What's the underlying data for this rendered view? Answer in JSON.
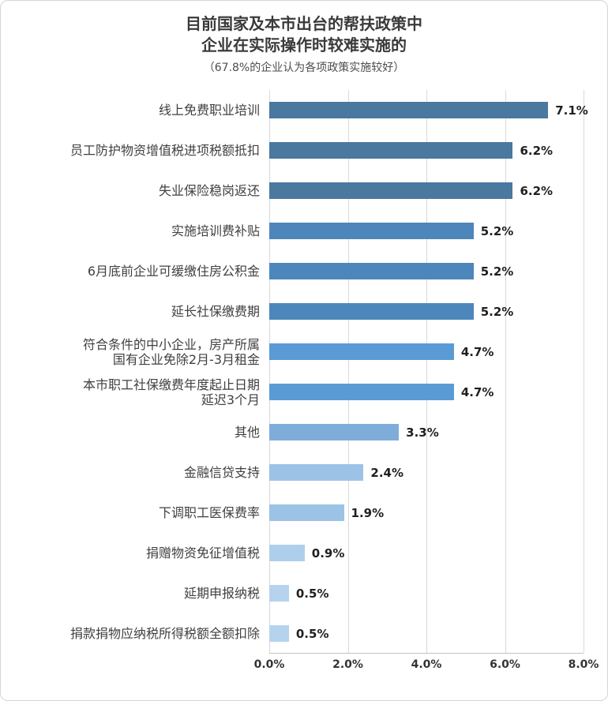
{
  "title": {
    "line1": "目前国家及本市出台的帮扶政策中",
    "line2": "企业在实际操作时较难实施的",
    "subtitle": "（67.8%的企业认为各项政策实施较好）"
  },
  "chart_data": {
    "type": "bar",
    "orientation": "horizontal",
    "title": "目前国家及本市出台的帮扶政策中企业在实际操作时较难实施的",
    "subtitle": "（67.8%的企业认为各项政策实施较好）",
    "xlabel": "",
    "ylabel": "",
    "xlim": [
      0,
      8
    ],
    "x_ticks": [
      "0.0%",
      "2.0%",
      "4.0%",
      "6.0%",
      "8.0%"
    ],
    "grid": true,
    "legend_position": "none",
    "categories": [
      "线上免费职业培训",
      "员工防护物资增值税进项税额抵扣",
      "失业保险稳岗返还",
      "实施培训费补贴",
      "6月底前企业可缓缴住房公积金",
      "延长社保缴费期",
      "符合条件的中小企业，房产所属\n国有企业免除2月-3月租金",
      "本市职工社保缴费年度起止日期\n延迟3个月",
      "其他",
      "金融信贷支持",
      "下调职工医保费率",
      "捐赠物资免征增值税",
      "延期申报纳税",
      "捐款捐物应纳税所得税额全额扣除"
    ],
    "values": [
      7.1,
      6.2,
      6.2,
      5.2,
      5.2,
      5.2,
      4.7,
      4.7,
      3.3,
      2.4,
      1.9,
      0.9,
      0.5,
      0.5
    ],
    "value_labels": [
      "7.1%",
      "6.2%",
      "6.2%",
      "5.2%",
      "5.2%",
      "5.2%",
      "4.7%",
      "4.7%",
      "3.3%",
      "2.4%",
      "1.9%",
      "0.9%",
      "0.5%",
      "0.5%"
    ],
    "bar_colors": [
      "#4a789f",
      "#4a789f",
      "#4a789f",
      "#4d86ba",
      "#4d86ba",
      "#4d86ba",
      "#5b9bd5",
      "#5b9bd5",
      "#7fadda",
      "#9cc3e6",
      "#9cc3e6",
      "#aecfec",
      "#b6d3ee",
      "#b6d3ee"
    ]
  },
  "colors": {
    "grid": "#d9d9d9",
    "axis": "#c2c2c2",
    "frame_border": "#d6d6d6",
    "title_text": "#3a3a3a",
    "category_text": "#404040",
    "value_text": "#1f1f1f"
  }
}
